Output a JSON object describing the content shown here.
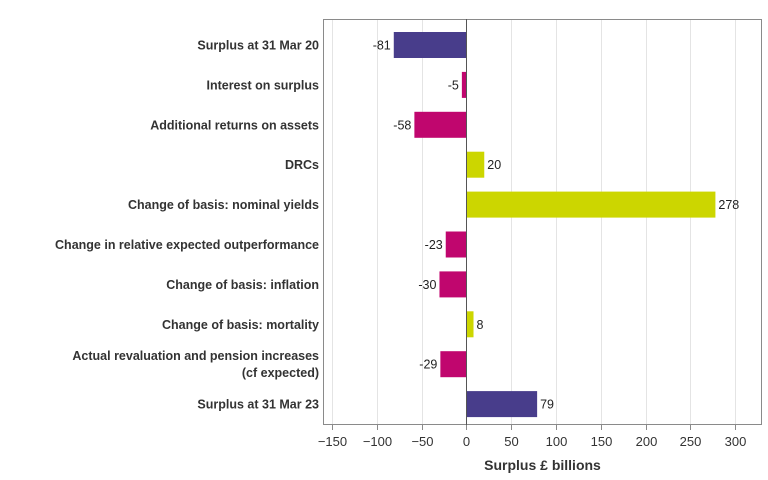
{
  "chart_data": {
    "type": "bar",
    "orientation": "horizontal",
    "title": "",
    "xlabel": "Surplus £ billions",
    "ylabel": "",
    "xlim": [
      -160,
      330
    ],
    "xticks": [
      -150,
      -100,
      -50,
      0,
      50,
      100,
      150,
      200,
      250,
      300
    ],
    "xtick_labels": [
      "−150",
      "−100",
      "−50",
      "0",
      "50",
      "100",
      "150",
      "200",
      "250",
      "300"
    ],
    "grid": true,
    "categories": [
      [
        "Surplus at 31 Mar 20"
      ],
      [
        "Interest on surplus"
      ],
      [
        "Additional returns on assets"
      ],
      [
        "DRCs"
      ],
      [
        "Change of basis: nominal yields"
      ],
      [
        "Change in relative expected outperformance"
      ],
      [
        "Change of basis: inflation"
      ],
      [
        "Change of basis: mortality"
      ],
      [
        "Actual revaluation and pension increases",
        "(cf expected)"
      ],
      [
        "Surplus at 31 Mar 23"
      ]
    ],
    "values": [
      -81,
      -5,
      -58,
      20,
      278,
      -23,
      -30,
      8,
      -29,
      79
    ],
    "data_labels": [
      "-81",
      "-5",
      "-58",
      "20",
      "278",
      "-23",
      "-30",
      "8",
      "-29",
      "79"
    ],
    "bar_roles": [
      "total",
      "decrease",
      "decrease",
      "increase",
      "increase",
      "decrease",
      "decrease",
      "increase",
      "decrease",
      "total"
    ],
    "colors": {
      "total": "#483d8b",
      "decrease": "#c0066e",
      "increase": "#ccd600"
    }
  }
}
